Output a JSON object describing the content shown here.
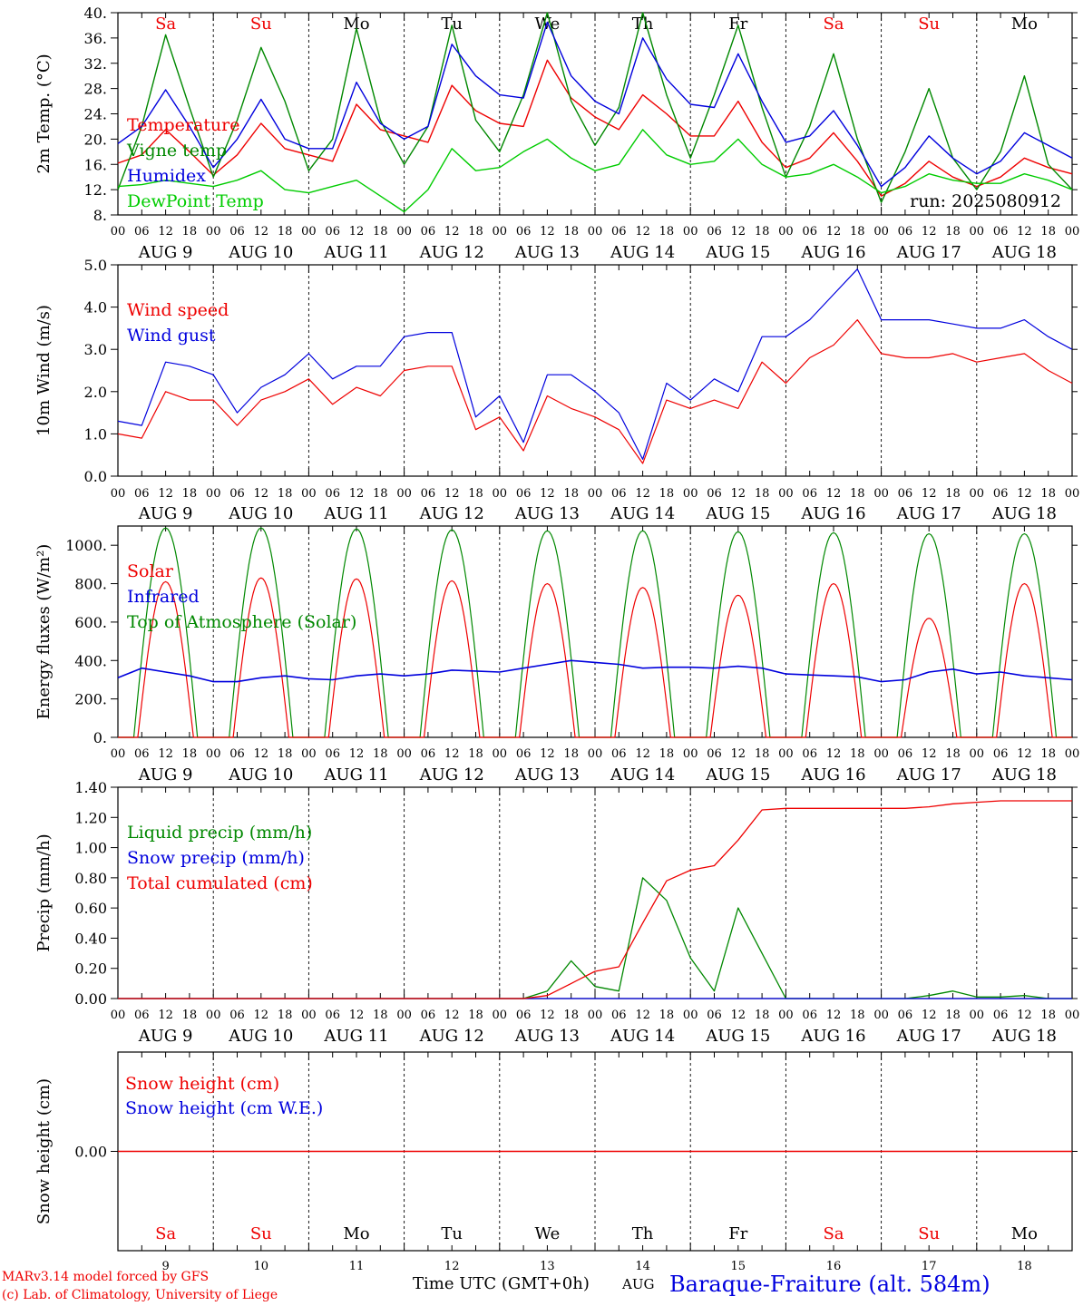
{
  "colors": {
    "red": "#ee0000",
    "green": "#008800",
    "blue": "#0000dd",
    "lightgreen": "#00cc00",
    "black": "#000000",
    "frame": "#000000"
  },
  "days": {
    "names": [
      "Sa",
      "Su",
      "Mo",
      "Tu",
      "We",
      "Th",
      "Fr",
      "Sa",
      "Su",
      "Mo"
    ],
    "name_colors": [
      "#ee0000",
      "#ee0000",
      "#000000",
      "#000000",
      "#000000",
      "#000000",
      "#000000",
      "#ee0000",
      "#ee0000",
      "#000000"
    ],
    "dates": [
      "AUG  9",
      "AUG 10",
      "AUG 11",
      "AUG 12",
      "AUG 13",
      "AUG 14",
      "AUG 15",
      "AUG 16",
      "AUG 17",
      "AUG 18"
    ],
    "numbers": [
      "9",
      "10",
      "11",
      "12",
      "13",
      "14",
      "15",
      "16",
      "17",
      "18"
    ],
    "hour_labels": [
      "00",
      "06",
      "12",
      "18"
    ],
    "final_hour_label": "00"
  },
  "chart_data": [
    {
      "type": "line",
      "ylabel": "2m Temp. (°C)",
      "ylim": [
        8,
        40
      ],
      "yticks": [
        "8.",
        "12.",
        "16.",
        "20.",
        "24.",
        "28.",
        "32.",
        "36.",
        "40."
      ],
      "run_label": "run: 2025080912",
      "x_hours": [
        0,
        6,
        12,
        18,
        24,
        30,
        36,
        42,
        48,
        54,
        60,
        66,
        72,
        78,
        84,
        90,
        96,
        102,
        108,
        114,
        120,
        126,
        132,
        138,
        144,
        150,
        156,
        162,
        168,
        174,
        180,
        186,
        192,
        198,
        204,
        210,
        216,
        222,
        228,
        234,
        240
      ],
      "series": [
        {
          "name": "Temperature",
          "color": "#ee0000",
          "values": [
            16.2,
            17.5,
            21.5,
            18,
            14.3,
            17.5,
            22.5,
            18.5,
            17.5,
            16.5,
            25.5,
            21.5,
            20.5,
            19.5,
            28.5,
            24.5,
            22.5,
            22,
            32.5,
            26.5,
            23.5,
            21.5,
            27,
            24,
            20.5,
            20.5,
            26,
            19.5,
            15.5,
            17,
            21,
            16.5,
            11,
            13,
            16.5,
            14,
            12.5,
            14,
            17,
            15.5,
            14.5
          ]
        },
        {
          "name": "Vigne temp",
          "color": "#008800",
          "values": [
            12,
            22,
            36.5,
            25,
            14,
            23,
            34.5,
            26,
            15,
            20,
            37.5,
            23,
            16,
            22,
            38,
            23,
            18,
            27,
            40,
            26,
            19,
            25,
            40,
            27,
            17,
            27,
            38,
            25,
            14,
            22,
            33.5,
            20,
            10,
            18,
            28,
            17,
            12,
            18,
            30,
            16,
            12
          ]
        },
        {
          "name": "Humidex",
          "color": "#0000dd",
          "values": [
            19.3,
            22,
            27.8,
            22,
            15.5,
            20,
            26.3,
            20,
            18.5,
            18.5,
            29,
            22.5,
            20,
            22,
            35,
            30,
            27,
            26.5,
            38.5,
            30,
            26,
            24,
            36,
            29.5,
            25.5,
            25,
            33.5,
            26,
            19.5,
            20.5,
            24.5,
            19,
            12.5,
            15.5,
            20.5,
            17,
            14.5,
            16.5,
            21,
            19,
            17
          ]
        },
        {
          "name": "DewPoint Temp",
          "color": "#00cc00",
          "values": [
            12.5,
            12.8,
            13.5,
            13,
            12.5,
            13.5,
            15,
            12,
            11.5,
            12.5,
            13.5,
            11,
            8.5,
            12,
            18.5,
            15,
            15.5,
            18,
            20,
            17,
            15,
            16,
            21.5,
            17.5,
            16,
            16.5,
            20,
            16,
            14,
            14.5,
            16,
            14,
            11.5,
            12.5,
            14.5,
            13.5,
            13,
            13,
            14.5,
            13.5,
            12
          ]
        }
      ]
    },
    {
      "type": "line",
      "ylabel": "10m Wind (m/s)",
      "ylim": [
        0,
        5
      ],
      "yticks": [
        "0.0",
        "1.0",
        "2.0",
        "3.0",
        "4.0",
        "5.0"
      ],
      "x_hours": [
        0,
        6,
        12,
        18,
        24,
        30,
        36,
        42,
        48,
        54,
        60,
        66,
        72,
        78,
        84,
        90,
        96,
        102,
        108,
        114,
        120,
        126,
        132,
        138,
        144,
        150,
        156,
        162,
        168,
        174,
        180,
        186,
        192,
        198,
        204,
        210,
        216,
        222,
        228,
        234,
        240
      ],
      "series": [
        {
          "name": "Wind speed",
          "color": "#ee0000",
          "values": [
            1.0,
            0.9,
            2.0,
            1.8,
            1.8,
            1.2,
            1.8,
            2.0,
            2.3,
            1.7,
            2.1,
            1.9,
            2.5,
            2.6,
            2.6,
            1.1,
            1.4,
            0.6,
            1.9,
            1.6,
            1.4,
            1.1,
            0.3,
            1.8,
            1.6,
            1.8,
            1.6,
            2.7,
            2.2,
            2.8,
            3.1,
            3.7,
            2.9,
            2.8,
            2.8,
            2.9,
            2.7,
            2.8,
            2.9,
            2.5,
            2.2
          ]
        },
        {
          "name": "Wind gust",
          "color": "#0000dd",
          "values": [
            1.3,
            1.2,
            2.7,
            2.6,
            2.4,
            1.5,
            2.1,
            2.4,
            2.9,
            2.3,
            2.6,
            2.6,
            3.3,
            3.4,
            3.4,
            1.4,
            1.9,
            0.8,
            2.4,
            2.4,
            2.0,
            1.5,
            0.4,
            2.2,
            1.8,
            2.3,
            2.0,
            3.3,
            3.3,
            3.7,
            4.3,
            4.9,
            3.7,
            3.7,
            3.7,
            3.6,
            3.5,
            3.5,
            3.7,
            3.3,
            3.0
          ]
        }
      ]
    },
    {
      "type": "line",
      "ylabel": "Energy fluxes (W/m²)",
      "ylim": [
        0,
        1100
      ],
      "yticks": [
        "0.",
        "200.",
        "400.",
        "600.",
        "800.",
        "1000."
      ],
      "x_hours": [
        0,
        6,
        12,
        18,
        24,
        30,
        36,
        42,
        48,
        54,
        60,
        66,
        72,
        78,
        84,
        90,
        96,
        102,
        108,
        114,
        120,
        126,
        132,
        138,
        144,
        150,
        156,
        162,
        168,
        174,
        180,
        186,
        192,
        198,
        204,
        210,
        216,
        222,
        228,
        234,
        240
      ],
      "series": [
        {
          "name": "Solar",
          "color": "#ee0000",
          "daily_peak": [
            810,
            830,
            825,
            815,
            800,
            780,
            740,
            800,
            620,
            800
          ]
        },
        {
          "name": "Infrared",
          "color": "#0000dd",
          "values": [
            310,
            360,
            340,
            320,
            290,
            290,
            310,
            320,
            305,
            300,
            320,
            330,
            320,
            330,
            350,
            345,
            340,
            360,
            380,
            400,
            390,
            380,
            360,
            365,
            365,
            360,
            370,
            360,
            330,
            325,
            320,
            315,
            290,
            300,
            340,
            355,
            330,
            340,
            320,
            310,
            300
          ]
        },
        {
          "name": "Top of Atmosphere (Solar)",
          "color": "#008800",
          "daily_peak": [
            1090,
            1090,
            1085,
            1080,
            1075,
            1075,
            1070,
            1065,
            1060,
            1060
          ]
        }
      ]
    },
    {
      "type": "line",
      "ylabel": "Precip (mm/h)",
      "ylim": [
        0,
        1.4
      ],
      "yticks": [
        "0.00",
        "0.20",
        "0.40",
        "0.60",
        "0.80",
        "1.00",
        "1.20",
        "1.40"
      ],
      "x_hours": [
        0,
        6,
        12,
        18,
        24,
        30,
        36,
        42,
        48,
        54,
        60,
        66,
        72,
        78,
        84,
        90,
        96,
        102,
        108,
        114,
        120,
        126,
        132,
        138,
        144,
        150,
        156,
        162,
        168,
        174,
        180,
        186,
        192,
        198,
        204,
        210,
        216,
        222,
        228,
        234,
        240
      ],
      "series": [
        {
          "name": "Liquid precip (mm/h)",
          "color": "#008800",
          "values": [
            0,
            0,
            0,
            0,
            0,
            0,
            0,
            0,
            0,
            0,
            0,
            0,
            0,
            0,
            0,
            0,
            0,
            0,
            0.05,
            0.25,
            0.08,
            0.05,
            0.8,
            0.65,
            0.27,
            0.05,
            0.6,
            0.3,
            0,
            0,
            0,
            0,
            0,
            0,
            0.02,
            0.05,
            0.01,
            0.01,
            0.02,
            0,
            0
          ]
        },
        {
          "name": "Snow precip (mm/h)",
          "color": "#0000dd",
          "values": [
            0,
            0,
            0,
            0,
            0,
            0,
            0,
            0,
            0,
            0,
            0,
            0,
            0,
            0,
            0,
            0,
            0,
            0,
            0,
            0,
            0,
            0,
            0,
            0,
            0,
            0,
            0,
            0,
            0,
            0,
            0,
            0,
            0,
            0,
            0,
            0,
            0,
            0,
            0,
            0,
            0
          ]
        },
        {
          "name": "Total cumulated (cm)",
          "color": "#ee0000",
          "values": [
            0,
            0,
            0,
            0,
            0,
            0,
            0,
            0,
            0,
            0,
            0,
            0,
            0,
            0,
            0,
            0,
            0,
            0,
            0.02,
            0.1,
            0.18,
            0.21,
            0.5,
            0.78,
            0.85,
            0.88,
            1.05,
            1.25,
            1.26,
            1.26,
            1.26,
            1.26,
            1.26,
            1.26,
            1.27,
            1.29,
            1.3,
            1.31,
            1.31,
            1.31,
            1.31
          ]
        }
      ]
    },
    {
      "type": "line",
      "ylabel": "Snow height (cm)",
      "ylim": [
        -1,
        1
      ],
      "yticks": [
        "0.00"
      ],
      "series": [
        {
          "name": "Snow height (cm)",
          "color": "#ee0000",
          "values": [
            0,
            0
          ]
        },
        {
          "name": "Snow height (cm W.E.)",
          "color": "#0000dd",
          "values": [
            0,
            0
          ]
        }
      ]
    }
  ],
  "footer": {
    "credit_1": "MARv3.14 model forced by GFS",
    "credit_2": "(c) Lab. of Climatology, University of Liege",
    "time_label": "Time UTC (GMT+0h)",
    "month_label": "AUG",
    "station": "Baraque-Fraiture (alt. 584m)"
  }
}
